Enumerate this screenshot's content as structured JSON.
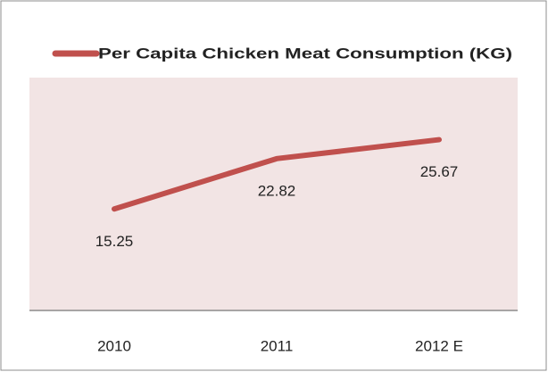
{
  "chart_data": {
    "type": "line",
    "categories": [
      "2010",
      "2011",
      "2012 E"
    ],
    "series": [
      {
        "name": "Per Capita Chicken Meat Consumption (KG)",
        "color": "#c0504d",
        "values": [
          15.25,
          22.82,
          25.67
        ]
      }
    ],
    "ylim": [
      0,
      35
    ],
    "grid": false,
    "legend": "top",
    "data_labels": true
  }
}
